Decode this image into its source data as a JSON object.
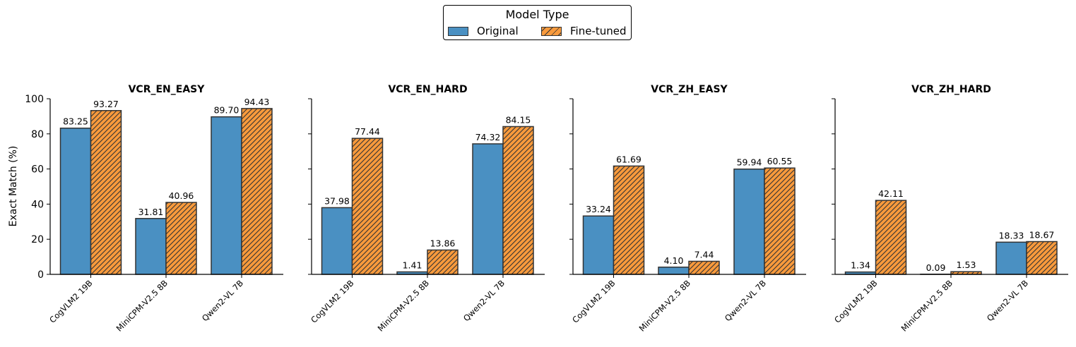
{
  "chart_data": {
    "type": "bar",
    "legend": {
      "title": "Model Type",
      "entries": [
        "Original",
        "Fine-tuned"
      ],
      "placement": "top-center"
    },
    "ylabel": "Exact Match (%)",
    "ylim": [
      0,
      100
    ],
    "yticks": [
      "0",
      "20",
      "40",
      "60",
      "80",
      "100"
    ],
    "categories": [
      "CogVLM2 19B",
      "MiniCPM-V2.5 8B",
      "Qwen2-VL 7B"
    ],
    "colors": {
      "original": "#4a90c2",
      "finetuned": "#f89a3c",
      "edge": "#333333"
    },
    "panels": [
      {
        "title": "VCR_EN_EASY",
        "original": [
          83.25,
          31.81,
          89.7
        ],
        "finetuned": [
          93.27,
          40.96,
          94.43
        ],
        "original_labels": [
          "83.25",
          "31.81",
          "89.70"
        ],
        "finetuned_labels": [
          "93.27",
          "40.96",
          "94.43"
        ]
      },
      {
        "title": "VCR_EN_HARD",
        "original": [
          37.98,
          1.41,
          74.32
        ],
        "finetuned": [
          77.44,
          13.86,
          84.15
        ],
        "original_labels": [
          "37.98",
          "1.41",
          "74.32"
        ],
        "finetuned_labels": [
          "77.44",
          "13.86",
          "84.15"
        ]
      },
      {
        "title": "VCR_ZH_EASY",
        "original": [
          33.24,
          4.1,
          59.94
        ],
        "finetuned": [
          61.69,
          7.44,
          60.55
        ],
        "original_labels": [
          "33.24",
          "4.10",
          "59.94"
        ],
        "finetuned_labels": [
          "61.69",
          "7.44",
          "60.55"
        ]
      },
      {
        "title": "VCR_ZH_HARD",
        "original": [
          1.34,
          0.09,
          18.33
        ],
        "finetuned": [
          42.11,
          1.53,
          18.67
        ],
        "original_labels": [
          "1.34",
          "0.09",
          "18.33"
        ],
        "finetuned_labels": [
          "42.11",
          "1.53",
          "18.67"
        ]
      }
    ]
  }
}
